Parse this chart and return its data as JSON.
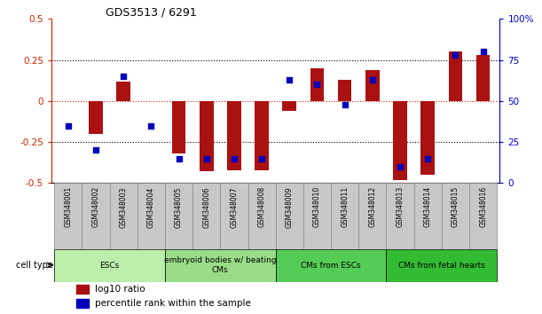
{
  "title": "GDS3513 / 6291",
  "samples": [
    "GSM348001",
    "GSM348002",
    "GSM348003",
    "GSM348004",
    "GSM348005",
    "GSM348006",
    "GSM348007",
    "GSM348008",
    "GSM348009",
    "GSM348010",
    "GSM348011",
    "GSM348012",
    "GSM348013",
    "GSM348014",
    "GSM348015",
    "GSM348016"
  ],
  "log10_ratio": [
    0.0,
    -0.2,
    0.12,
    0.0,
    -0.32,
    -0.43,
    -0.42,
    -0.42,
    -0.06,
    0.2,
    0.13,
    0.19,
    -0.48,
    -0.45,
    0.3,
    0.28
  ],
  "percentile_rank": [
    35,
    20,
    65,
    35,
    15,
    15,
    15,
    15,
    63,
    60,
    48,
    63,
    10,
    15,
    78,
    80
  ],
  "cell_types": [
    {
      "label": "ESCs",
      "start": 0,
      "end": 3,
      "color": "#BBEEAA"
    },
    {
      "label": "embryoid bodies w/ beating\nCMs",
      "start": 4,
      "end": 7,
      "color": "#99DD88"
    },
    {
      "label": "CMs from ESCs",
      "start": 8,
      "end": 11,
      "color": "#55CC55"
    },
    {
      "label": "CMs from fetal hearts",
      "start": 12,
      "end": 15,
      "color": "#33BB33"
    }
  ],
  "ylim_left": [
    -0.5,
    0.5
  ],
  "ylim_right": [
    0,
    100
  ],
  "yticks_left": [
    -0.5,
    -0.25,
    0,
    0.25,
    0.5
  ],
  "ytick_labels_left": [
    "-0.5",
    "-0.25",
    "0",
    "0.25",
    "0.5"
  ],
  "yticks_right": [
    0,
    25,
    50,
    75,
    100
  ],
  "ytick_labels_right": [
    "0",
    "25",
    "50",
    "75",
    "100%"
  ],
  "bar_color": "#AA1111",
  "dot_color": "#0000BB",
  "bar_width": 0.5,
  "dot_size": 25,
  "sample_box_color": "#C8C8C8",
  "sample_box_edge_color": "#888888",
  "background_color": "#FFFFFF"
}
